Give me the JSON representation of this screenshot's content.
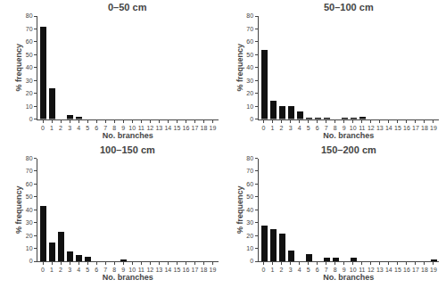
{
  "chart_data": [
    {
      "type": "bar",
      "title": "0–50 cm",
      "xlabel": "No. branches",
      "ylabel": "% frequency",
      "x": [
        0,
        1,
        2,
        3,
        4,
        5,
        6,
        7,
        8,
        9,
        10,
        11,
        12,
        13,
        14,
        15,
        16,
        17,
        18,
        19
      ],
      "values": [
        72,
        24,
        0,
        3,
        2,
        0,
        0,
        0,
        0,
        0,
        0,
        0,
        0,
        0,
        0,
        0,
        0,
        0,
        0,
        0
      ],
      "color": "#111111",
      "xlim": [
        -0.6,
        19.6
      ],
      "xticks": [
        0,
        1,
        2,
        3,
        4,
        5,
        6,
        7,
        8,
        9,
        10,
        11,
        12,
        13,
        14,
        15,
        16,
        17,
        18,
        19
      ],
      "ylim": [
        0,
        80
      ],
      "yticks": [
        0,
        10,
        20,
        30,
        40,
        50,
        60,
        70,
        80
      ],
      "grid": false
    },
    {
      "type": "bar",
      "title": "50–100 cm",
      "xlabel": "No. branches",
      "ylabel": "% frequency",
      "x": [
        0,
        1,
        2,
        3,
        4,
        5,
        6,
        7,
        8,
        9,
        10,
        11,
        12,
        13,
        14,
        15,
        16,
        17,
        18,
        19
      ],
      "values": [
        54,
        14,
        10,
        10,
        6,
        1,
        1,
        1,
        0,
        1,
        1,
        2,
        0,
        0,
        0,
        0,
        0,
        0,
        0,
        0
      ],
      "color": "#111111",
      "xlim": [
        -0.6,
        19.6
      ],
      "xticks": [
        0,
        1,
        2,
        3,
        4,
        5,
        6,
        7,
        8,
        9,
        10,
        11,
        12,
        13,
        14,
        15,
        16,
        17,
        18,
        19
      ],
      "ylim": [
        0,
        80
      ],
      "yticks": [
        0,
        10,
        20,
        30,
        40,
        50,
        60,
        70,
        80
      ],
      "grid": false
    },
    {
      "type": "bar",
      "title": "100–150 cm",
      "xlabel": "No. branches",
      "ylabel": "% frequency",
      "x": [
        0,
        1,
        2,
        3,
        4,
        5,
        6,
        7,
        8,
        9,
        10,
        11,
        12,
        13,
        14,
        15,
        16,
        17,
        18,
        19
      ],
      "values": [
        43,
        15,
        23,
        8,
        5,
        4,
        0,
        0,
        0,
        2,
        0,
        0,
        0,
        0,
        0,
        0,
        0,
        0,
        0,
        0
      ],
      "color": "#111111",
      "xlim": [
        -0.6,
        19.6
      ],
      "xticks": [
        0,
        1,
        2,
        3,
        4,
        5,
        6,
        7,
        8,
        9,
        10,
        11,
        12,
        13,
        14,
        15,
        16,
        17,
        18,
        19
      ],
      "ylim": [
        0,
        80
      ],
      "yticks": [
        0,
        10,
        20,
        30,
        40,
        50,
        60,
        70,
        80
      ],
      "grid": false
    },
    {
      "type": "bar",
      "title": "150–200 cm",
      "xlabel": "No. branches",
      "ylabel": "% frequency",
      "x": [
        0,
        1,
        2,
        3,
        4,
        5,
        6,
        7,
        8,
        9,
        10,
        11,
        12,
        13,
        14,
        15,
        16,
        17,
        18,
        19
      ],
      "values": [
        28,
        25,
        22,
        9,
        0,
        6,
        0,
        3,
        3,
        0,
        3,
        0,
        0,
        0,
        0,
        0,
        0,
        0,
        0,
        2
      ],
      "color": "#111111",
      "xlim": [
        -0.6,
        19.6
      ],
      "xticks": [
        0,
        1,
        2,
        3,
        4,
        5,
        6,
        7,
        8,
        9,
        10,
        11,
        12,
        13,
        14,
        15,
        16,
        17,
        18,
        19
      ],
      "ylim": [
        0,
        80
      ],
      "yticks": [
        0,
        10,
        20,
        30,
        40,
        50,
        60,
        70,
        80
      ],
      "grid": false
    }
  ]
}
